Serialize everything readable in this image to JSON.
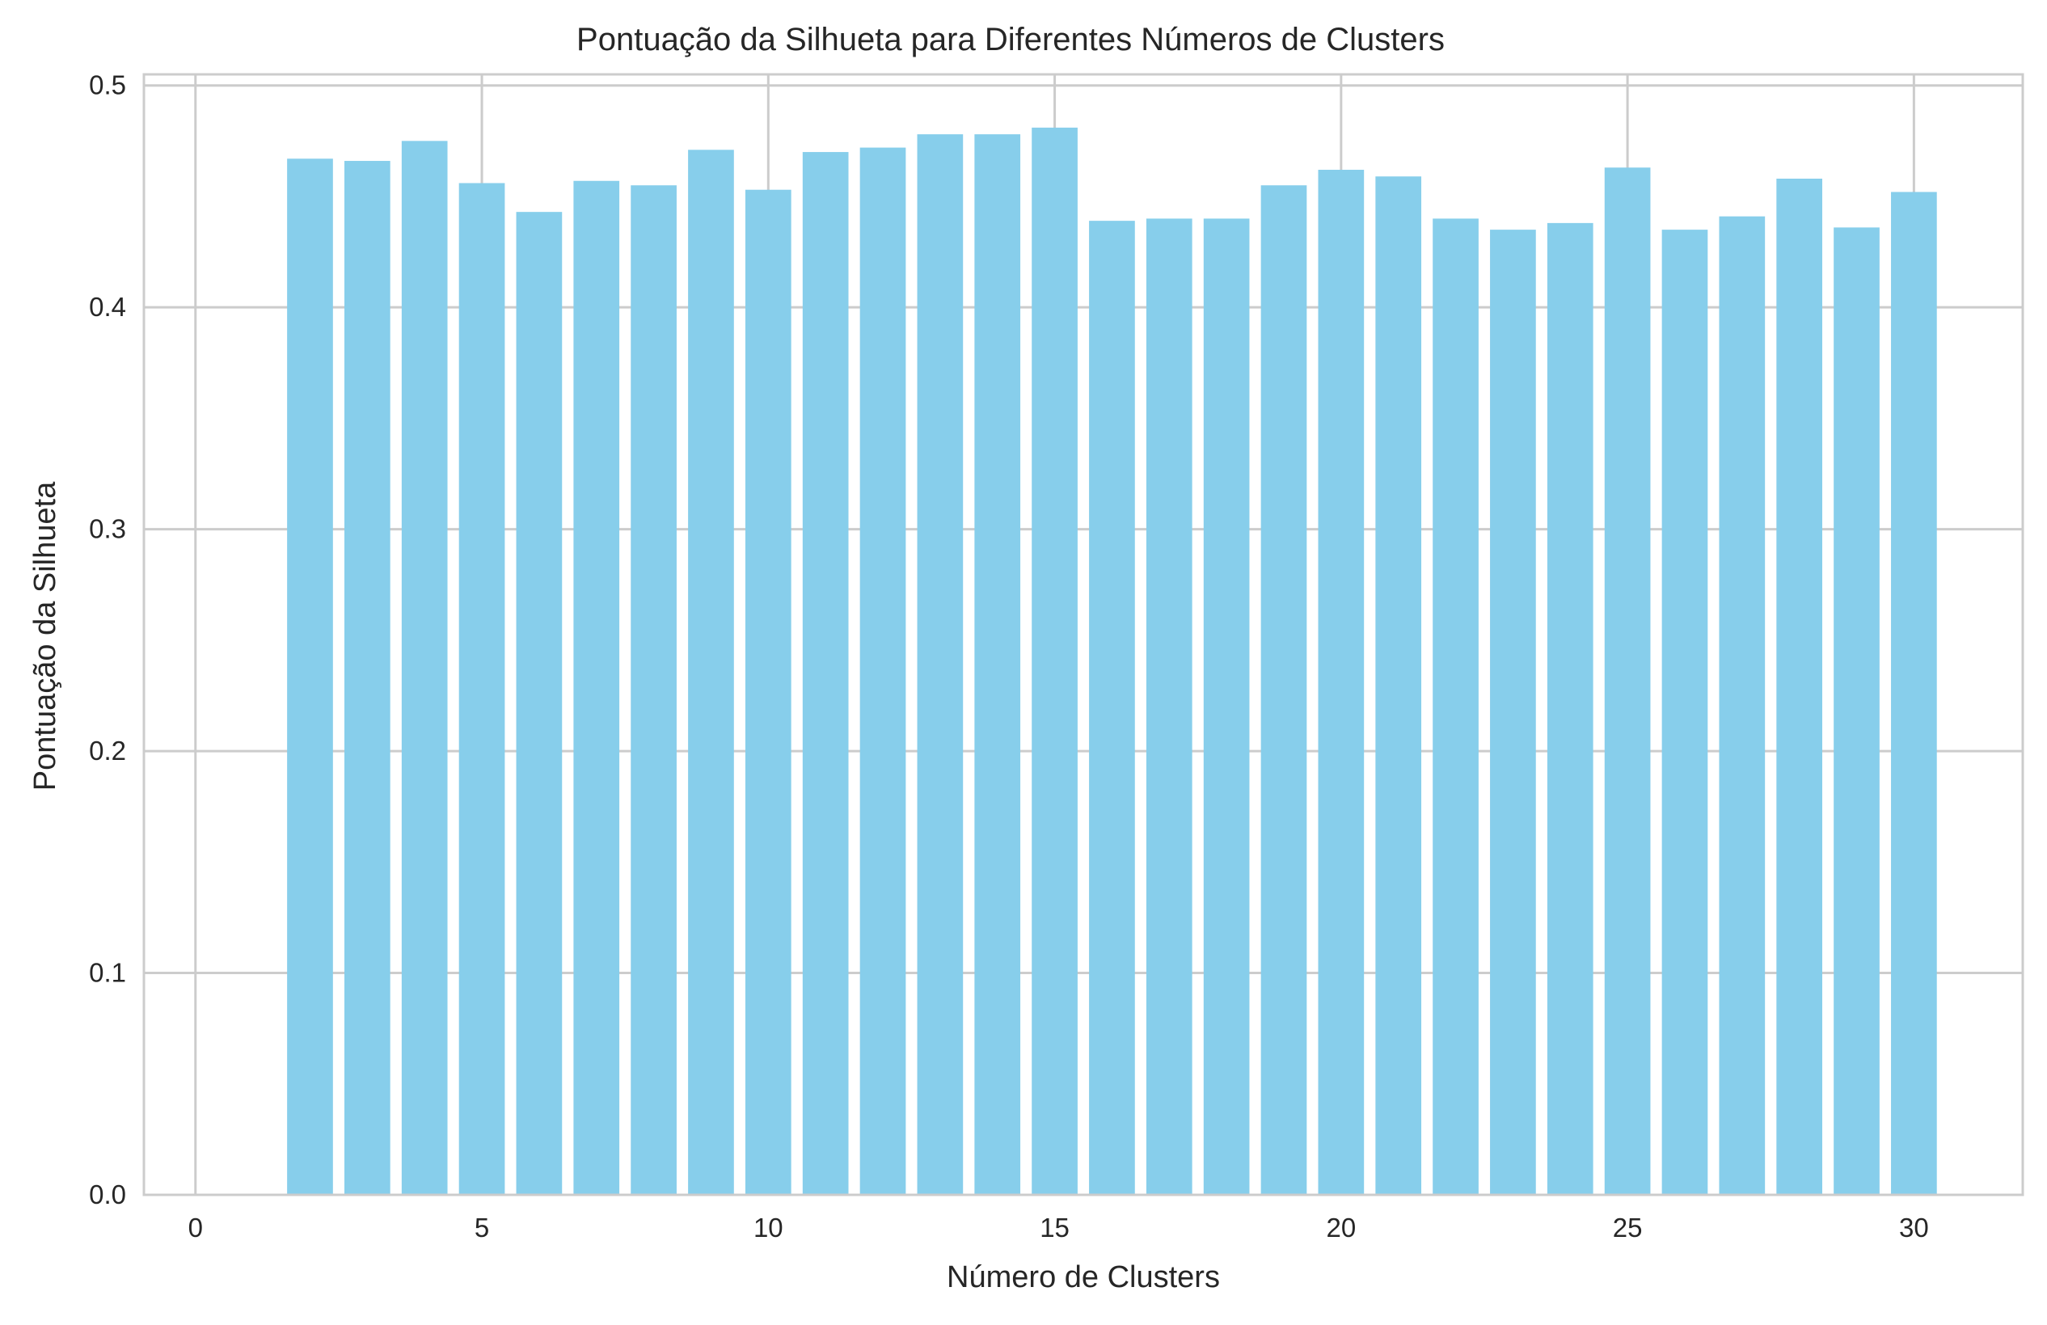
{
  "chart_data": {
    "type": "bar",
    "title": "Pontuação da Silhueta para Diferentes Números de Clusters",
    "xlabel": "Número de Clusters",
    "ylabel": "Pontuação da Silhueta",
    "x": [
      2,
      3,
      4,
      5,
      6,
      7,
      8,
      9,
      10,
      11,
      12,
      13,
      14,
      15,
      16,
      17,
      18,
      19,
      20,
      21,
      22,
      23,
      24,
      25,
      26,
      27,
      28,
      29,
      30
    ],
    "values": [
      0.467,
      0.466,
      0.475,
      0.456,
      0.443,
      0.457,
      0.455,
      0.471,
      0.453,
      0.47,
      0.472,
      0.478,
      0.478,
      0.481,
      0.439,
      0.44,
      0.44,
      0.455,
      0.462,
      0.459,
      0.44,
      0.435,
      0.438,
      0.463,
      0.435,
      0.441,
      0.458,
      0.436,
      0.452
    ],
    "xlim": [
      -0.9,
      31.9
    ],
    "ylim": [
      0,
      0.505
    ],
    "xticks": [
      0,
      5,
      10,
      15,
      20,
      25,
      30
    ],
    "xtick_labels": [
      "0",
      "5",
      "10",
      "15",
      "20",
      "25",
      "30"
    ],
    "yticks": [
      0.0,
      0.1,
      0.2,
      0.3,
      0.4,
      0.5
    ],
    "ytick_labels": [
      "0.0",
      "0.1",
      "0.2",
      "0.3",
      "0.4",
      "0.5"
    ],
    "grid": true,
    "bar_color": "#87CEEB",
    "grid_color": "#CCCCCC",
    "text_color": "#262626"
  }
}
